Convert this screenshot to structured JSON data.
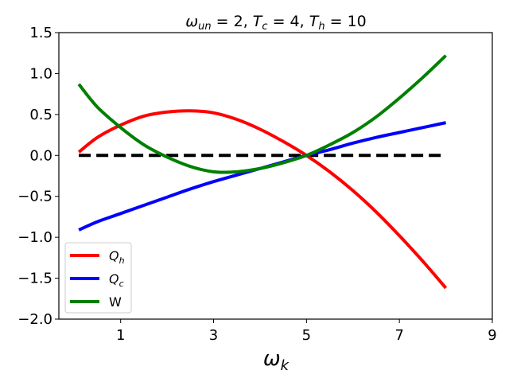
{
  "chart_data": {
    "type": "line",
    "title": "ω_un = 2, T_c = 4, T_h = 10",
    "title_parts": {
      "omega": "ω",
      "omega_sub": "un",
      "omega_val": " = 2, ",
      "tc": "T",
      "tc_sub": "c",
      "tc_val": " = 4, ",
      "th": "T",
      "th_sub": "h",
      "th_val": " = 10"
    },
    "xlabel": "ω_k",
    "xlabel_parts": {
      "main": "ω",
      "sub": "k"
    },
    "ylabel": "",
    "xlim": [
      -0.33,
      9
    ],
    "ylim": [
      -2.0,
      1.5
    ],
    "xticks": [
      1,
      3,
      5,
      7,
      9
    ],
    "xtick_labels": [
      "1",
      "3",
      "5",
      "7",
      "9"
    ],
    "yticks": [
      1.5,
      1.0,
      0.5,
      0.0,
      -0.5,
      -1.0,
      -1.5,
      -2.0
    ],
    "ytick_labels": [
      "1.5",
      "1.0",
      "0.5",
      "0.0",
      "−0.5",
      "−1.0",
      "−1.5",
      "−2.0"
    ],
    "grid": false,
    "legend_position": "lower left",
    "x": [
      0.1,
      0.5,
      1.0,
      1.5,
      2.0,
      2.5,
      3.0,
      3.5,
      4.0,
      4.5,
      5.0,
      5.5,
      6.0,
      6.5,
      7.0,
      7.5,
      8.0
    ],
    "series": [
      {
        "name": "Q_h",
        "label_main": "Q",
        "label_sub": "h",
        "color": "#ff0000",
        "values": [
          0.04,
          0.22,
          0.37,
          0.48,
          0.53,
          0.545,
          0.52,
          0.44,
          0.32,
          0.17,
          0.0,
          -0.2,
          -0.43,
          -0.69,
          -0.98,
          -1.29,
          -1.62
        ]
      },
      {
        "name": "Q_c",
        "label_main": "Q",
        "label_sub": "c",
        "color": "#0000ff",
        "values": [
          -0.91,
          -0.81,
          -0.71,
          -0.61,
          -0.51,
          -0.41,
          -0.32,
          -0.24,
          -0.16,
          -0.08,
          0.0,
          0.07,
          0.15,
          0.22,
          0.28,
          0.34,
          0.4
        ]
      },
      {
        "name": "W",
        "label_main": "W",
        "label_sub": "",
        "color": "#008000",
        "values": [
          0.87,
          0.59,
          0.34,
          0.13,
          -0.02,
          -0.135,
          -0.2,
          -0.2,
          -0.16,
          -0.09,
          0.0,
          0.13,
          0.28,
          0.47,
          0.7,
          0.95,
          1.22
        ]
      }
    ],
    "reference_line": {
      "y": 0.0,
      "x_range": [
        0.1,
        7.9
      ],
      "color": "#000000",
      "style": "dashed"
    }
  }
}
